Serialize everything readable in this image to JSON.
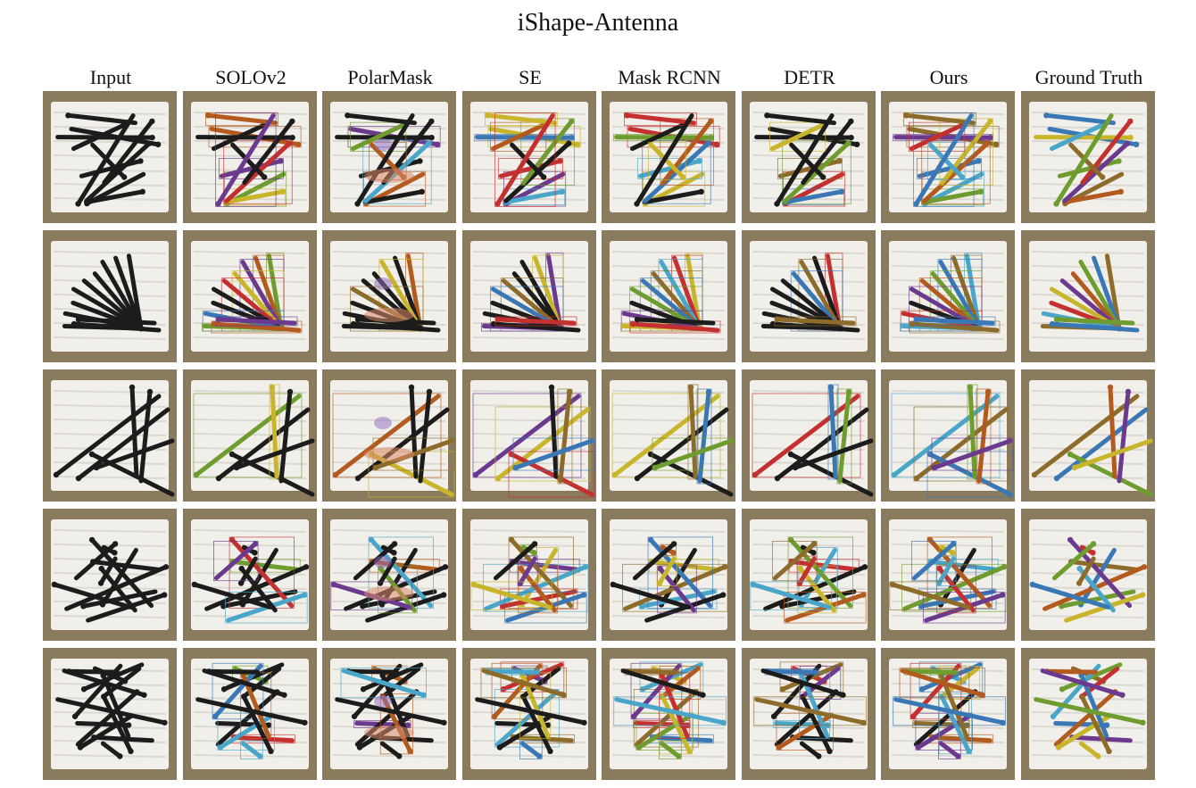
{
  "figure": {
    "title": "iShape-Antenna",
    "columns": [
      "Input",
      "SOLOv2",
      "PolarMask",
      "SE",
      "Mask RCNN",
      "DETR",
      "Ours",
      "Ground Truth"
    ],
    "row_count": 5
  },
  "colors": {
    "antenna_black": "#1c1c1c",
    "box_cardboard": "#8a7b5e",
    "foam_white": "#f1efea",
    "mask_palette": [
      "#3a78b5",
      "#6f9c2f",
      "#b35a1f",
      "#6b3a8f",
      "#c9b52c",
      "#c43030",
      "#4aa6c8",
      "#8d6b2a"
    ]
  }
}
